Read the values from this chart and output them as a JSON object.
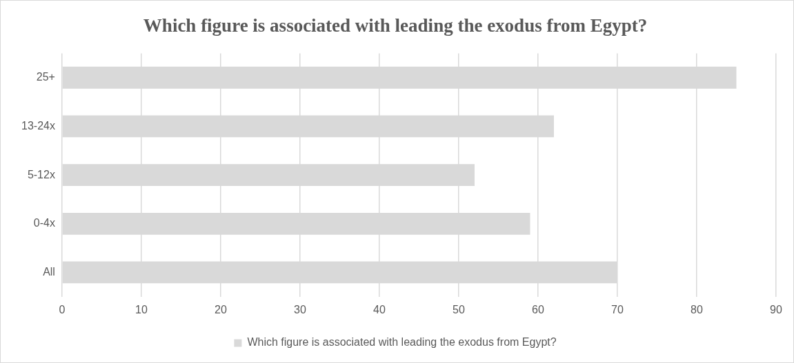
{
  "chart_data": {
    "type": "bar",
    "orientation": "horizontal",
    "title": "Which figure is associated with leading the exodus from Egypt?",
    "categories": [
      "25+",
      "13-24x",
      "5-12x",
      "0-4x",
      "All"
    ],
    "series": [
      {
        "name": "Which figure is associated with leading the exodus from Egypt?",
        "color": "#d9d9d9",
        "values": [
          85,
          62,
          52,
          59,
          70
        ]
      }
    ],
    "xlim": [
      0,
      90
    ],
    "xticks": [
      0,
      10,
      20,
      30,
      40,
      50,
      60,
      70,
      80,
      90
    ],
    "grid": "x",
    "legend": "bottom"
  }
}
